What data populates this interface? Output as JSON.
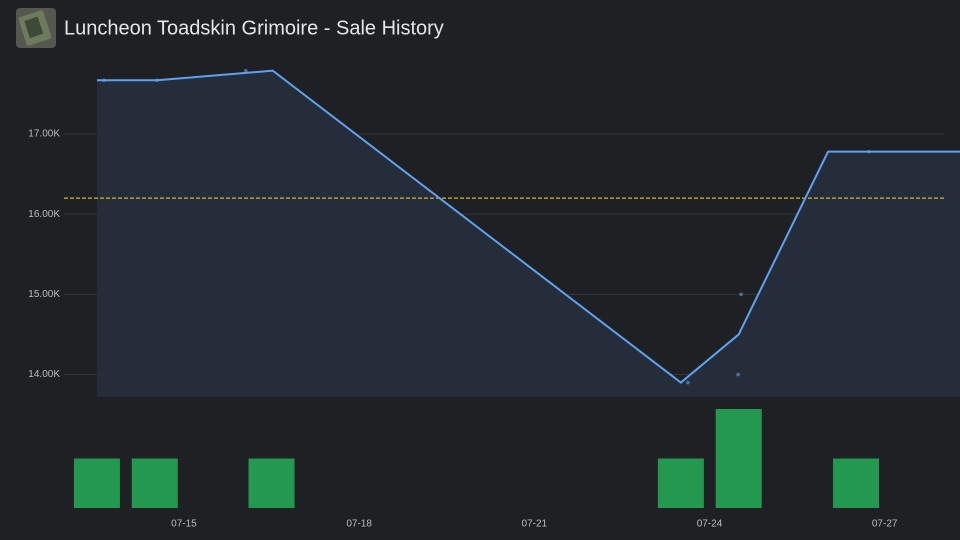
{
  "header": {
    "title": "Luncheon Toadskin Grimoire - Sale History"
  },
  "chart_data": [
    {
      "type": "line",
      "color": "#5ea2ef",
      "fill": "#262d3a",
      "x": [
        13.51,
        14.54,
        16.52,
        23.51,
        24.5,
        26.03,
        28.29
      ],
      "values": [
        17670,
        17670,
        17790,
        13900,
        14500,
        16780,
        16780
      ],
      "points": {
        "x": [
          13.63,
          14.54,
          16.06,
          23.63,
          24.49,
          24.54,
          26.73
        ],
        "values": [
          17670,
          17670,
          17790,
          13900,
          14000,
          15000,
          16780
        ]
      },
      "average": 16200,
      "average_color": "#d4b72c",
      "xlim": [
        11.85,
        28.29
      ],
      "ylim": [
        13720,
        18000
      ],
      "yticks": [
        {
          "value": 14000,
          "label": "14.00K"
        },
        {
          "value": 15000,
          "label": "15.00K"
        },
        {
          "value": 16000,
          "label": "16.00K"
        },
        {
          "value": 17000,
          "label": "17.00K"
        }
      ],
      "grid": true
    },
    {
      "type": "bar",
      "color": "#23994f",
      "x": [
        13.51,
        14.5,
        16.5,
        23.51,
        24.5,
        26.51
      ],
      "values": [
        1,
        1,
        1,
        1,
        2,
        1
      ],
      "xlim": [
        11.85,
        28.29
      ],
      "ylim": [
        0,
        2
      ],
      "xticks": [
        {
          "value": 15,
          "label": "07-15"
        },
        {
          "value": 18,
          "label": "07-18"
        },
        {
          "value": 21,
          "label": "07-21"
        },
        {
          "value": 24,
          "label": "07-24"
        },
        {
          "value": 27,
          "label": "07-27"
        }
      ]
    }
  ]
}
